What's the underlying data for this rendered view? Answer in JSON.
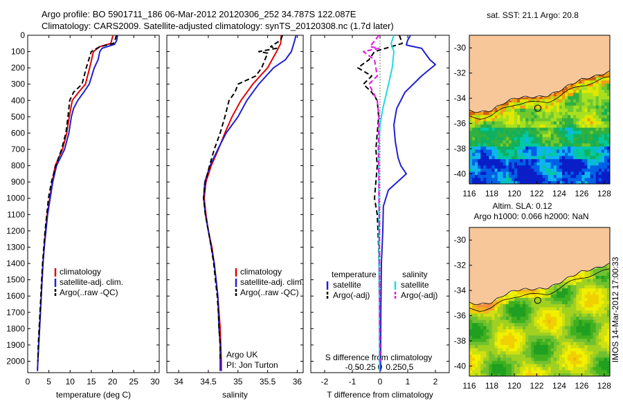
{
  "header": {
    "title_line1": "Argo profile: BO 5901711_186 06-Mar-2012 20120306_252 34.787S 122.087E",
    "title_line2": "Climatology: CARS2009. Satellite-adjusted climatology: synTS_20120308.nc (1.7d later)"
  },
  "side_label": "IMOS 14-Mar-2012 17:00:33",
  "colors": {
    "clim": "#e00000",
    "sat": "#1f1fd0",
    "argo": "#000000",
    "sat_s": "#22d8e0",
    "argo_s": "#e020e0",
    "land": "#f7c79a"
  },
  "chart_data": [
    {
      "type": "line",
      "id": "temperature",
      "xlabel": "temperature (deg C)",
      "ylabel": "",
      "xlim": [
        0,
        31
      ],
      "ylim": [
        2070,
        0
      ],
      "xticks": [
        0,
        5,
        10,
        15,
        20,
        25,
        30
      ],
      "yticks": [
        0,
        100,
        200,
        300,
        400,
        500,
        600,
        700,
        800,
        900,
        1000,
        1100,
        1200,
        1300,
        1400,
        1500,
        1600,
        1700,
        1800,
        1900,
        2000
      ],
      "legend": [
        "climatology",
        "satellite-adj. clim.",
        "Argo(..raw -QC)"
      ],
      "series": [
        {
          "name": "climatology",
          "style": "clim",
          "points": [
            [
              20.1,
              0
            ],
            [
              19.9,
              20
            ],
            [
              19.6,
              50
            ],
            [
              17,
              70
            ],
            [
              15.5,
              100
            ],
            [
              14.6,
              200
            ],
            [
              13.6,
              300
            ],
            [
              12,
              350
            ],
            [
              10.5,
              400
            ],
            [
              9.8,
              500
            ],
            [
              9.2,
              600
            ],
            [
              8.2,
              700
            ],
            [
              6.5,
              800
            ],
            [
              5.8,
              900
            ],
            [
              5.2,
              1000
            ],
            [
              4.6,
              1100
            ],
            [
              4.2,
              1200
            ],
            [
              3.9,
              1300
            ],
            [
              3.6,
              1400
            ],
            [
              3.4,
              1500
            ],
            [
              3.2,
              1600
            ],
            [
              3.0,
              1700
            ],
            [
              2.8,
              1800
            ],
            [
              2.6,
              1900
            ],
            [
              2.4,
              2000
            ],
            [
              2.3,
              2060
            ]
          ]
        },
        {
          "name": "satellite-adj. clim.",
          "style": "sat",
          "points": [
            [
              21.2,
              0
            ],
            [
              21,
              30
            ],
            [
              20.5,
              55
            ],
            [
              17.5,
              80
            ],
            [
              17,
              100
            ],
            [
              16.6,
              150
            ],
            [
              15.7,
              200
            ],
            [
              14.5,
              300
            ],
            [
              13.2,
              350
            ],
            [
              11.8,
              400
            ],
            [
              10.8,
              450
            ],
            [
              10.3,
              500
            ],
            [
              9.7,
              600
            ],
            [
              8.7,
              700
            ],
            [
              6.8,
              800
            ],
            [
              5.9,
              900
            ],
            [
              5.3,
              1000
            ],
            [
              4.7,
              1100
            ],
            [
              4.3,
              1200
            ],
            [
              3.9,
              1300
            ],
            [
              3.6,
              1400
            ],
            [
              3.4,
              1500
            ],
            [
              3.2,
              1600
            ],
            [
              3.0,
              1700
            ],
            [
              2.8,
              1800
            ],
            [
              2.6,
              1900
            ],
            [
              2.4,
              2000
            ],
            [
              2.3,
              2060
            ]
          ]
        },
        {
          "name": "Argo(..raw -QC)",
          "style": "argo",
          "points": [
            [
              20.9,
              0
            ],
            [
              20.7,
              20
            ],
            [
              20.2,
              50
            ],
            [
              17,
              70
            ],
            [
              15,
              100
            ],
            [
              13.8,
              200
            ],
            [
              12.8,
              300
            ],
            [
              10.8,
              350
            ],
            [
              9.9,
              400
            ],
            [
              9.5,
              500
            ],
            [
              9.0,
              600
            ],
            [
              8.0,
              700
            ],
            [
              6.6,
              800
            ],
            [
              5.6,
              900
            ],
            [
              4.9,
              1000
            ],
            [
              4.5,
              1100
            ],
            [
              4.1,
              1200
            ],
            [
              3.8,
              1300
            ],
            [
              3.5,
              1400
            ],
            [
              3.3,
              1500
            ],
            [
              3.1,
              1600
            ],
            [
              2.9,
              1700
            ],
            [
              2.7,
              1800
            ],
            [
              2.5,
              1900
            ],
            [
              2.4,
              2000
            ]
          ]
        }
      ]
    },
    {
      "type": "line",
      "id": "salinity",
      "xlabel": "salinity",
      "ylabel": "",
      "xlim": [
        33.8,
        36.1
      ],
      "ylim": [
        2070,
        0
      ],
      "xticks": [
        34,
        34.5,
        35,
        35.5,
        36
      ],
      "xticklabels": [
        "34",
        "34.5",
        "35",
        "35.5",
        "36"
      ],
      "legend": [
        "climatology",
        "satellite-adj. clim.",
        "Argo(..raw -QC)"
      ],
      "annotation": [
        "Argo UK",
        "PI: Jon Turton"
      ],
      "series": [
        {
          "name": "climatology",
          "style": "clim",
          "points": [
            [
              35.73,
              0
            ],
            [
              35.72,
              50
            ],
            [
              35.65,
              100
            ],
            [
              35.5,
              200
            ],
            [
              35.25,
              300
            ],
            [
              35.05,
              400
            ],
            [
              34.9,
              500
            ],
            [
              34.78,
              600
            ],
            [
              34.67,
              700
            ],
            [
              34.55,
              800
            ],
            [
              34.46,
              900
            ],
            [
              34.43,
              1000
            ],
            [
              34.46,
              1100
            ],
            [
              34.5,
              1200
            ],
            [
              34.56,
              1300
            ],
            [
              34.6,
              1400
            ],
            [
              34.63,
              1500
            ],
            [
              34.66,
              1600
            ],
            [
              34.68,
              1700
            ],
            [
              34.7,
              1800
            ],
            [
              34.71,
              1900
            ],
            [
              34.72,
              2000
            ],
            [
              34.72,
              2060
            ]
          ]
        },
        {
          "name": "satellite-adj. clim.",
          "style": "sat",
          "points": [
            [
              35.98,
              0
            ],
            [
              35.95,
              40
            ],
            [
              35.9,
              100
            ],
            [
              35.8,
              150
            ],
            [
              35.6,
              200
            ],
            [
              35.35,
              300
            ],
            [
              35.15,
              400
            ],
            [
              35.0,
              500
            ],
            [
              34.8,
              600
            ],
            [
              34.66,
              700
            ],
            [
              34.53,
              800
            ],
            [
              34.44,
              900
            ],
            [
              34.42,
              1000
            ],
            [
              34.45,
              1100
            ],
            [
              34.5,
              1200
            ],
            [
              34.55,
              1300
            ],
            [
              34.6,
              1400
            ],
            [
              34.63,
              1500
            ],
            [
              34.66,
              1600
            ],
            [
              34.67,
              1700
            ],
            [
              34.68,
              1800
            ],
            [
              34.7,
              1900
            ],
            [
              34.7,
              2000
            ],
            [
              34.7,
              2060
            ]
          ]
        },
        {
          "name": "Argo(..raw -QC)",
          "style": "argo",
          "points": [
            [
              35.75,
              0
            ],
            [
              35.72,
              30
            ],
            [
              35.55,
              70
            ],
            [
              35.65,
              80
            ],
            [
              35.35,
              100
            ],
            [
              35.5,
              110
            ],
            [
              35.4,
              200
            ],
            [
              35.3,
              250
            ],
            [
              35.0,
              300
            ],
            [
              34.95,
              350
            ],
            [
              34.85,
              400
            ],
            [
              34.78,
              500
            ],
            [
              34.7,
              600
            ],
            [
              34.6,
              700
            ],
            [
              34.52,
              800
            ],
            [
              34.45,
              900
            ],
            [
              34.42,
              1000
            ],
            [
              34.45,
              1100
            ],
            [
              34.5,
              1200
            ],
            [
              34.55,
              1300
            ],
            [
              34.59,
              1400
            ],
            [
              34.62,
              1500
            ],
            [
              34.65,
              1600
            ],
            [
              34.67,
              1700
            ],
            [
              34.68,
              1800
            ],
            [
              34.7,
              1900
            ],
            [
              34.7,
              2000
            ]
          ]
        }
      ]
    },
    {
      "type": "line",
      "id": "differences",
      "xlabel": "T difference from climatology",
      "xlabel_top": "S difference from climatology",
      "xlim": [
        -2.5,
        2.5
      ],
      "ylim": [
        2070,
        0
      ],
      "xticks": [
        -2,
        -1,
        0,
        1,
        2
      ],
      "s_ticks": [
        -0.5,
        -0.25,
        0,
        0.25,
        0.5
      ],
      "s_ticklabels": [
        "-0.5",
        "-0.25",
        "0",
        "0.25",
        "0.5"
      ],
      "legend_t_title": "temperature",
      "legend_s_title": "salinity",
      "legend": [
        "satellite",
        "Argo(-adj)",
        "satellite",
        "Argo(-adj)"
      ],
      "series": [
        {
          "name": "satellite",
          "group": "temperature",
          "style": "sat",
          "points": [
            [
              1.1,
              0
            ],
            [
              1.0,
              30
            ],
            [
              0.95,
              60
            ],
            [
              1.5,
              80
            ],
            [
              1.8,
              150
            ],
            [
              2.0,
              180
            ],
            [
              1.5,
              250
            ],
            [
              0.9,
              350
            ],
            [
              0.6,
              450
            ],
            [
              0.5,
              550
            ],
            [
              0.55,
              650
            ],
            [
              0.65,
              750
            ],
            [
              0.75,
              800
            ],
            [
              0.95,
              850
            ],
            [
              0.3,
              950
            ],
            [
              0.12,
              1050
            ],
            [
              0.1,
              1200
            ],
            [
              0.05,
              1400
            ],
            [
              0.03,
              1700
            ],
            [
              0.02,
              2000
            ],
            [
              0.02,
              2060
            ]
          ]
        },
        {
          "name": "Argo(-adj)",
          "group": "temperature",
          "style": "argo",
          "points": [
            [
              0.7,
              0
            ],
            [
              0.8,
              50
            ],
            [
              -0.2,
              100
            ],
            [
              -0.4,
              150
            ],
            [
              -0.8,
              200
            ],
            [
              -0.3,
              250
            ],
            [
              -0.6,
              300
            ],
            [
              -0.3,
              350
            ],
            [
              -0.1,
              400
            ],
            [
              -0.05,
              500
            ],
            [
              -0.1,
              600
            ],
            [
              -0.15,
              700
            ],
            [
              -0.1,
              800
            ],
            [
              -0.15,
              900
            ],
            [
              -0.2,
              1000
            ],
            [
              -0.1,
              1100
            ],
            [
              -0.05,
              1300
            ],
            [
              -0.03,
              1500
            ],
            [
              -0.02,
              1700
            ],
            [
              -0.01,
              2000
            ]
          ]
        },
        {
          "name": "satellite",
          "group": "salinity",
          "style": "sat_s",
          "points": [
            [
              0.25,
              0
            ],
            [
              0.2,
              50
            ],
            [
              0.25,
              100
            ],
            [
              0.22,
              200
            ],
            [
              0.12,
              350
            ],
            [
              0.05,
              450
            ],
            [
              0.0,
              550
            ],
            [
              -0.02,
              700
            ],
            [
              -0.02,
              900
            ],
            [
              -0.02,
              1100
            ],
            [
              -0.02,
              1400
            ],
            [
              -0.01,
              1700
            ],
            [
              -0.01,
              2000
            ],
            [
              -0.01,
              2060
            ]
          ]
        },
        {
          "name": "Argo(-adj)",
          "group": "salinity",
          "style": "argo_s",
          "points": [
            [
              -0.02,
              0
            ],
            [
              -0.18,
              70
            ],
            [
              -0.02,
              80
            ],
            [
              -0.3,
              100
            ],
            [
              -0.1,
              150
            ],
            [
              -0.05,
              250
            ],
            [
              -0.2,
              300
            ],
            [
              -0.05,
              400
            ],
            [
              -0.02,
              500
            ],
            [
              -0.03,
              700
            ],
            [
              -0.02,
              900
            ],
            [
              -0.02,
              1000
            ],
            [
              -0.01,
              1100
            ],
            [
              -0.01,
              1400
            ],
            [
              -0.01,
              1700
            ],
            [
              0.0,
              2000
            ]
          ]
        }
      ]
    },
    {
      "type": "heatmap",
      "id": "sst-map",
      "title": "sat. SST: 21.1  Argo: 20.8",
      "xlim": [
        116,
        128.5
      ],
      "ylim": [
        -40.8,
        -29
      ],
      "xticks": [
        116,
        118,
        120,
        122,
        124,
        126,
        128
      ],
      "yticks": [
        -30,
        -32,
        -34,
        -36,
        -38,
        -40
      ],
      "marker": {
        "lon": 122.087,
        "lat": -34.787
      }
    },
    {
      "type": "heatmap",
      "id": "sla-map",
      "title_line1": "Altim. SLA: 0.12",
      "title_line2": "Argo h1000: 0.066 h2000: NaN",
      "xlim": [
        116,
        128.5
      ],
      "ylim": [
        -40.8,
        -29
      ],
      "xticks": [
        116,
        118,
        120,
        122,
        124,
        126,
        128
      ],
      "yticks": [
        -30,
        -32,
        -34,
        -36,
        -38,
        -40
      ],
      "marker": {
        "lon": 122.087,
        "lat": -34.787
      }
    }
  ]
}
